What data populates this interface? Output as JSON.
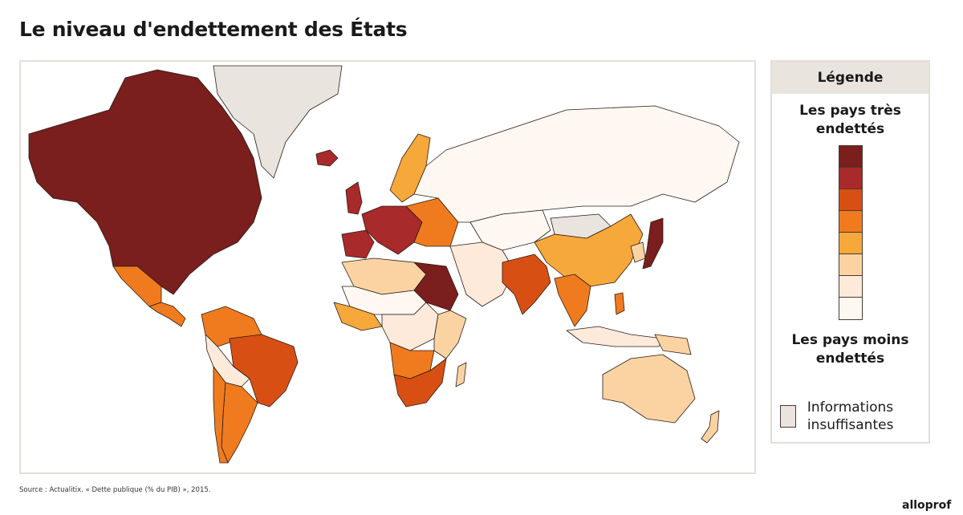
{
  "title": "Le niveau d'endettement des États",
  "source": "Source : Actualitix. « Dette publique (% du PIB) », 2015.",
  "logo": "alloprof",
  "legend": {
    "header": "Légende",
    "top_label": "Les pays très endettés",
    "bottom_label": "Les pays moins endettés",
    "insufficient_label": "Informations insuffisantes",
    "insufficient_color": "#e9e4de",
    "scale_colors": [
      "#7a1e1e",
      "#a82a2a",
      "#d84f14",
      "#f07b1e",
      "#f7a83a",
      "#fbd3a3",
      "#fdeadb",
      "#fff8f2"
    ]
  },
  "map": {
    "regions": [
      {
        "id": "north-america",
        "level": 0
      },
      {
        "id": "greenland",
        "level": "insufficient"
      },
      {
        "id": "iceland",
        "level": 1
      },
      {
        "id": "mexico",
        "level": 3
      },
      {
        "id": "central-america",
        "level": 3
      },
      {
        "id": "colombia-venezuela",
        "level": 3
      },
      {
        "id": "brazil",
        "level": 2
      },
      {
        "id": "andes",
        "level": 6
      },
      {
        "id": "argentina",
        "level": 3
      },
      {
        "id": "chile",
        "level": 3
      },
      {
        "id": "western-europe",
        "level": 1
      },
      {
        "id": "iberia",
        "level": 1
      },
      {
        "id": "uk-ireland",
        "level": 1
      },
      {
        "id": "scandinavia",
        "level": 4
      },
      {
        "id": "eastern-europe",
        "level": 3
      },
      {
        "id": "russia",
        "level": 7
      },
      {
        "id": "central-asia",
        "level": 7
      },
      {
        "id": "mongolia",
        "level": "insufficient"
      },
      {
        "id": "china",
        "level": 4
      },
      {
        "id": "japan",
        "level": 0
      },
      {
        "id": "korea",
        "level": 5
      },
      {
        "id": "india",
        "level": 2
      },
      {
        "id": "middle-east",
        "level": 6
      },
      {
        "id": "north-africa",
        "level": 5
      },
      {
        "id": "sahel",
        "level": 7
      },
      {
        "id": "sudan-egypt",
        "level": 0
      },
      {
        "id": "west-africa",
        "level": 4
      },
      {
        "id": "central-africa",
        "level": 6
      },
      {
        "id": "east-africa",
        "level": 5
      },
      {
        "id": "angola-zambia",
        "level": 3
      },
      {
        "id": "mozambique-south-africa",
        "level": 2
      },
      {
        "id": "madagascar",
        "level": 5
      },
      {
        "id": "southeast-asia",
        "level": 3
      },
      {
        "id": "indonesia",
        "level": 6
      },
      {
        "id": "philippines",
        "level": 3
      },
      {
        "id": "australia",
        "level": 5
      },
      {
        "id": "new-zealand",
        "level": 5
      },
      {
        "id": "papua",
        "level": 5
      }
    ]
  }
}
